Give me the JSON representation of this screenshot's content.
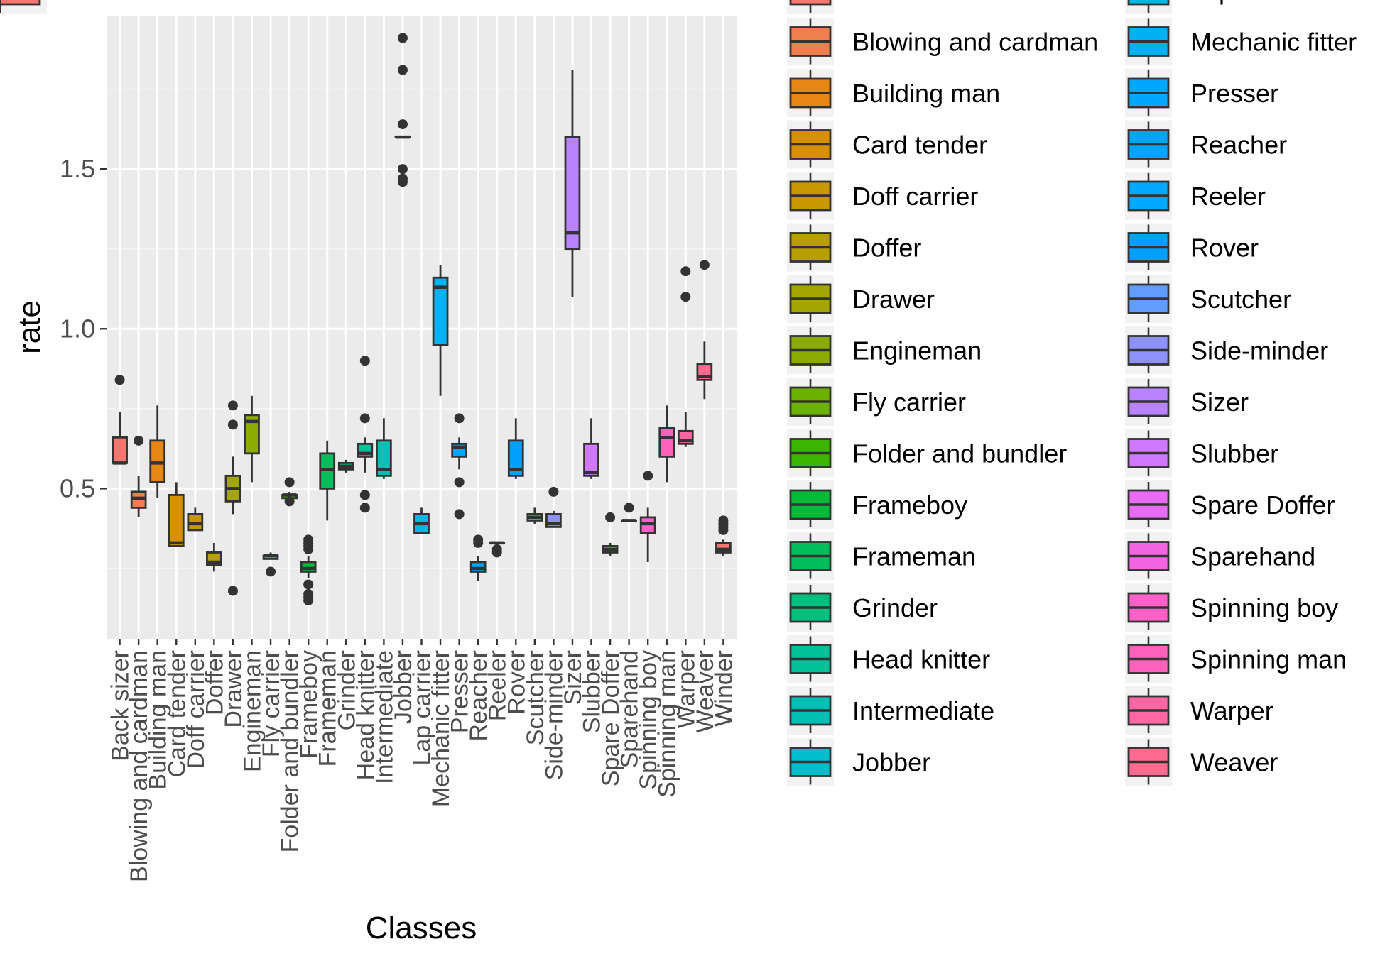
{
  "chart_data": {
    "type": "boxplot",
    "xlabel": "Classes",
    "ylabel": "rate",
    "ylim": [
      0.03,
      1.98
    ],
    "y_ticks": [
      "0.5",
      "1.0",
      "1.5"
    ],
    "y_tick_values": [
      0.5,
      1.0,
      1.5
    ],
    "grid": true,
    "legend_position": "right",
    "categories": [
      "Back sizer",
      "Blowing and cardman",
      "Building man",
      "Card tender",
      "Doff carrier",
      "Doffer",
      "Drawer",
      "Engineman",
      "Fly carrier",
      "Folder and bundler",
      "Frameboy",
      "Frameman",
      "Grinder",
      "Head knitter",
      "Intermediate",
      "Jobber",
      "Lap carrier",
      "Mechanic fitter",
      "Presser",
      "Reacher",
      "Reeler",
      "Rover",
      "Scutcher",
      "Side-minder",
      "Sizer",
      "Slubber",
      "Spare Doffer",
      "Sparehand",
      "Spinning boy",
      "Spinning man",
      "Warper",
      "Weaver",
      "Winder"
    ],
    "colors": [
      "#F8766D",
      "#F07F4F",
      "#E68613",
      "#D89000",
      "#C99800",
      "#B79F00",
      "#A3A500",
      "#8BAB00",
      "#6BB100",
      "#39B600",
      "#00BA38",
      "#00BD5C",
      "#00BF7D",
      "#00C19A",
      "#00C0B5",
      "#00BECD",
      "#00B8E2",
      "#00B1F3",
      "#00A7FF",
      "#00A5FF",
      "#00A9FF",
      "#00A0FF",
      "#619CFF",
      "#8F91FF",
      "#B983FF",
      "#D277FF",
      "#E76BF3",
      "#F564E3",
      "#FF61C9",
      "#FF62BC",
      "#FF67A4",
      "#FF6C90",
      "#F8766D"
    ],
    "boxes": [
      {
        "q1": 0.58,
        "median": 0.58,
        "q3": 0.66,
        "whisker_low": 0.58,
        "whisker_high": 0.74,
        "outliers": [
          0.84
        ]
      },
      {
        "q1": 0.44,
        "median": 0.47,
        "q3": 0.49,
        "whisker_low": 0.41,
        "whisker_high": 0.54,
        "outliers": [
          0.65
        ]
      },
      {
        "q1": 0.52,
        "median": 0.58,
        "q3": 0.65,
        "whisker_low": 0.47,
        "whisker_high": 0.76,
        "outliers": []
      },
      {
        "q1": 0.32,
        "median": 0.33,
        "q3": 0.48,
        "whisker_low": 0.32,
        "whisker_high": 0.52,
        "outliers": []
      },
      {
        "q1": 0.37,
        "median": 0.39,
        "q3": 0.42,
        "whisker_low": 0.37,
        "whisker_high": 0.44,
        "outliers": []
      },
      {
        "q1": 0.26,
        "median": 0.27,
        "q3": 0.3,
        "whisker_low": 0.24,
        "whisker_high": 0.33,
        "outliers": []
      },
      {
        "q1": 0.46,
        "median": 0.5,
        "q3": 0.54,
        "whisker_low": 0.42,
        "whisker_high": 0.6,
        "outliers": [
          0.18,
          0.7,
          0.76
        ]
      },
      {
        "q1": 0.61,
        "median": 0.71,
        "q3": 0.73,
        "whisker_low": 0.52,
        "whisker_high": 0.79,
        "outliers": []
      },
      {
        "q1": 0.28,
        "median": 0.29,
        "q3": 0.29,
        "whisker_low": 0.28,
        "whisker_high": 0.3,
        "outliers": [
          0.24
        ]
      },
      {
        "q1": 0.47,
        "median": 0.48,
        "q3": 0.48,
        "whisker_low": 0.47,
        "whisker_high": 0.49,
        "outliers": [
          0.46,
          0.52
        ]
      },
      {
        "q1": 0.24,
        "median": 0.25,
        "q3": 0.27,
        "whisker_low": 0.22,
        "whisker_high": 0.29,
        "outliers": [
          0.15,
          0.16,
          0.17,
          0.2,
          0.31,
          0.32,
          0.33,
          0.34
        ]
      },
      {
        "q1": 0.5,
        "median": 0.56,
        "q3": 0.61,
        "whisker_low": 0.4,
        "whisker_high": 0.65,
        "outliers": []
      },
      {
        "q1": 0.56,
        "median": 0.57,
        "q3": 0.58,
        "whisker_low": 0.55,
        "whisker_high": 0.59,
        "outliers": []
      },
      {
        "q1": 0.6,
        "median": 0.61,
        "q3": 0.64,
        "whisker_low": 0.55,
        "whisker_high": 0.66,
        "outliers": [
          0.44,
          0.48,
          0.72,
          0.9
        ]
      },
      {
        "q1": 0.54,
        "median": 0.56,
        "q3": 0.65,
        "whisker_low": 0.53,
        "whisker_high": 0.72,
        "outliers": []
      },
      {
        "q1": 1.6,
        "median": 1.6,
        "q3": 1.6,
        "whisker_low": 1.6,
        "whisker_high": 1.6,
        "outliers": [
          1.46,
          1.47,
          1.5,
          1.64,
          1.81,
          1.91
        ]
      },
      {
        "q1": 0.36,
        "median": 0.39,
        "q3": 0.42,
        "whisker_low": 0.36,
        "whisker_high": 0.44,
        "outliers": []
      },
      {
        "q1": 0.95,
        "median": 1.13,
        "q3": 1.16,
        "whisker_low": 0.79,
        "whisker_high": 1.2,
        "outliers": []
      },
      {
        "q1": 0.6,
        "median": 0.63,
        "q3": 0.64,
        "whisker_low": 0.56,
        "whisker_high": 0.66,
        "outliers": [
          0.42,
          0.52,
          0.72
        ]
      },
      {
        "q1": 0.24,
        "median": 0.25,
        "q3": 0.27,
        "whisker_low": 0.21,
        "whisker_high": 0.29,
        "outliers": [
          0.33,
          0.34
        ]
      },
      {
        "q1": 0.33,
        "median": 0.33,
        "q3": 0.33,
        "whisker_low": 0.33,
        "whisker_high": 0.33,
        "outliers": [
          0.3,
          0.31
        ]
      },
      {
        "q1": 0.54,
        "median": 0.56,
        "q3": 0.65,
        "whisker_low": 0.53,
        "whisker_high": 0.72,
        "outliers": []
      },
      {
        "q1": 0.4,
        "median": 0.41,
        "q3": 0.42,
        "whisker_low": 0.39,
        "whisker_high": 0.44,
        "outliers": []
      },
      {
        "q1": 0.38,
        "median": 0.39,
        "q3": 0.42,
        "whisker_low": 0.38,
        "whisker_high": 0.43,
        "outliers": [
          0.49
        ]
      },
      {
        "q1": 1.25,
        "median": 1.3,
        "q3": 1.6,
        "whisker_low": 1.1,
        "whisker_high": 1.81,
        "outliers": []
      },
      {
        "q1": 0.54,
        "median": 0.55,
        "q3": 0.64,
        "whisker_low": 0.53,
        "whisker_high": 0.72,
        "outliers": []
      },
      {
        "q1": 0.3,
        "median": 0.31,
        "q3": 0.32,
        "whisker_low": 0.29,
        "whisker_high": 0.33,
        "outliers": [
          0.41
        ]
      },
      {
        "q1": 0.4,
        "median": 0.4,
        "q3": 0.4,
        "whisker_low": 0.4,
        "whisker_high": 0.4,
        "outliers": [
          0.44
        ]
      },
      {
        "q1": 0.36,
        "median": 0.39,
        "q3": 0.41,
        "whisker_low": 0.27,
        "whisker_high": 0.44,
        "outliers": [
          0.54
        ]
      },
      {
        "q1": 0.6,
        "median": 0.66,
        "q3": 0.69,
        "whisker_low": 0.52,
        "whisker_high": 0.76,
        "outliers": []
      },
      {
        "q1": 0.64,
        "median": 0.65,
        "q3": 0.68,
        "whisker_low": 0.63,
        "whisker_high": 0.74,
        "outliers": [
          1.1,
          1.18
        ]
      },
      {
        "q1": 0.84,
        "median": 0.85,
        "q3": 0.89,
        "whisker_low": 0.78,
        "whisker_high": 0.96,
        "outliers": [
          1.2
        ]
      },
      {
        "q1": 0.3,
        "median": 0.31,
        "q3": 0.33,
        "whisker_low": 0.29,
        "whisker_high": 0.34,
        "outliers": [
          0.37,
          0.38,
          0.39,
          0.4
        ]
      }
    ]
  }
}
